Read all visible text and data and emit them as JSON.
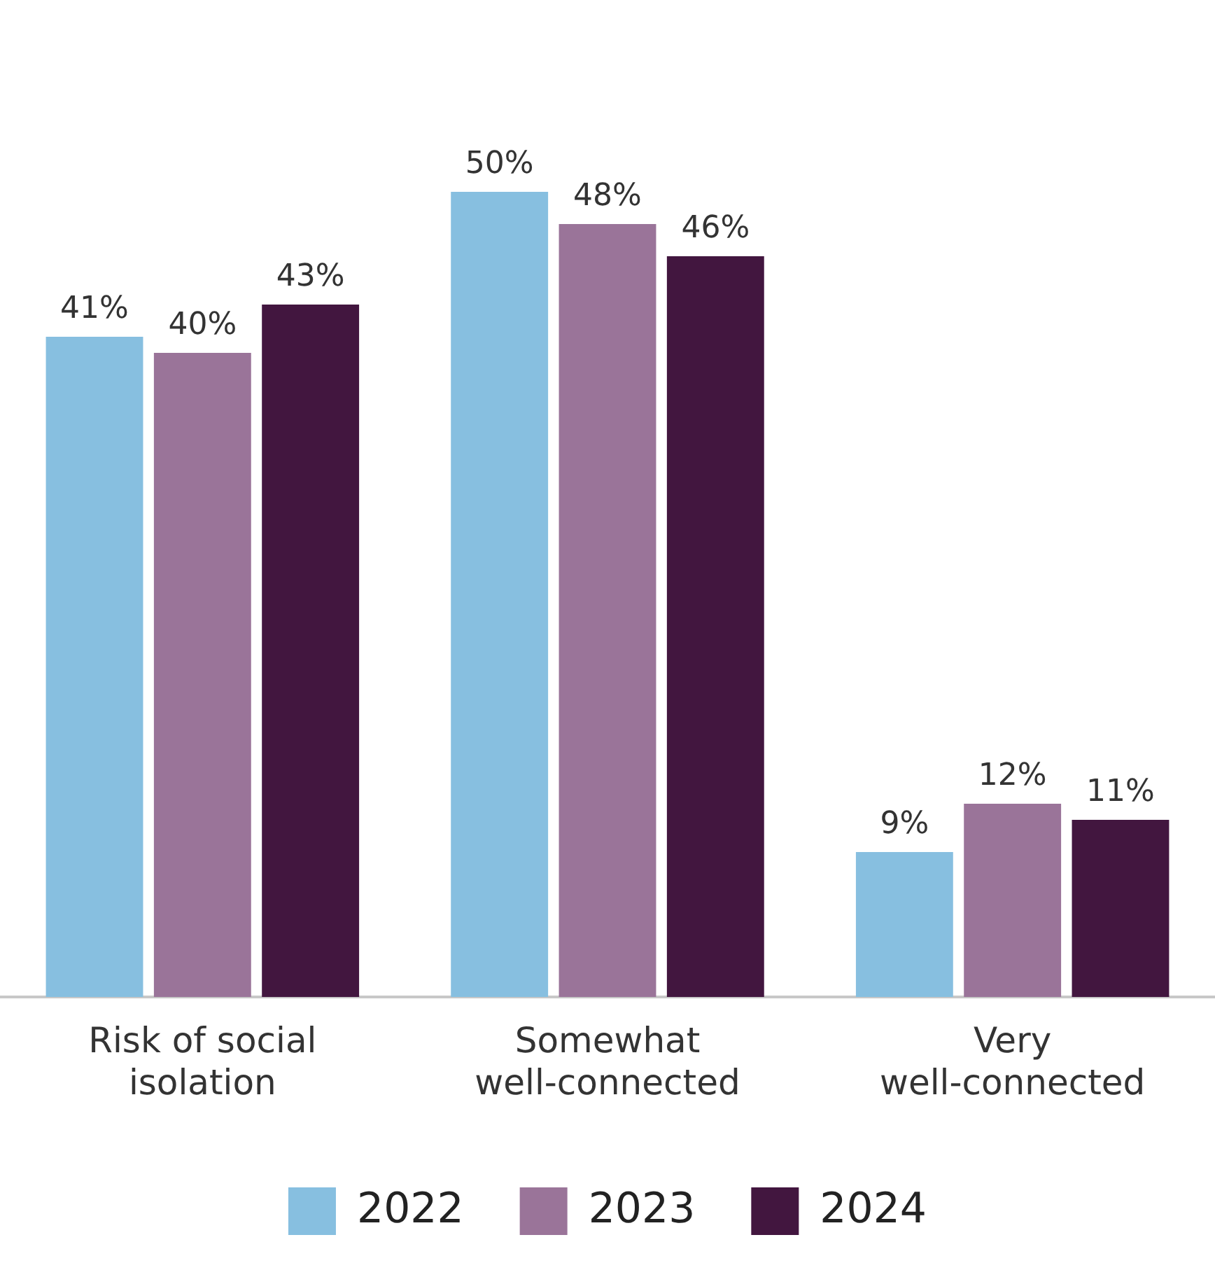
{
  "chart_data": {
    "type": "bar",
    "categories": [
      "Risk of social isolation",
      "Somewhat well-connected",
      "Very well-connected"
    ],
    "series": [
      {
        "name": "2022",
        "color": "#87bfe0",
        "values": [
          41,
          50,
          9
        ],
        "value_labels": [
          "41%",
          "50%",
          "9%"
        ]
      },
      {
        "name": "2023",
        "color": "#9a7499",
        "values": [
          40,
          48,
          12
        ],
        "value_labels": [
          "40%",
          "48%",
          "12%"
        ]
      },
      {
        "name": "2024",
        "color": "#42163f",
        "values": [
          43,
          46,
          11
        ],
        "value_labels": [
          "43%",
          "46%",
          "11%"
        ]
      }
    ],
    "legend": "bottom",
    "grid": false
  }
}
